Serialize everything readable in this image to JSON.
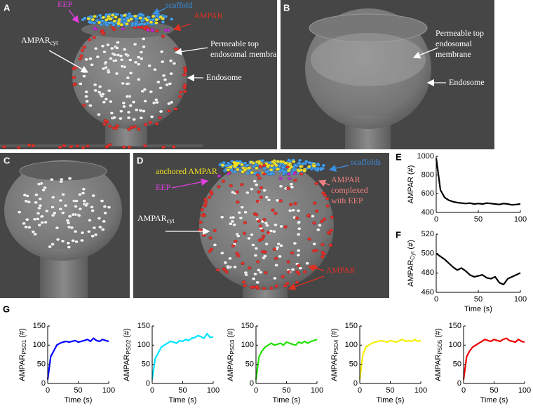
{
  "panels": {
    "A": {
      "label": "A",
      "eep": "EEP",
      "scaffold": "scaffold",
      "ampar": "AMPAR",
      "ampar_cyt": {
        "main": "AMPAR",
        "sub": "cyt"
      },
      "permeable": [
        "Permeable top",
        "endosomal membrane"
      ],
      "endosome": "Endosome"
    },
    "B": {
      "label": "B",
      "permeable": [
        "Permeable top",
        "endosomal",
        "membrane"
      ],
      "endosome": "Endosome"
    },
    "C": {
      "label": "C"
    },
    "D": {
      "label": "D",
      "anchored": "anchored AMPAR",
      "scaffolds": "scaffolds",
      "eep": "EEP",
      "complexed": [
        "AMPAR",
        "complexed",
        "with EEP"
      ],
      "ampar_cyt": {
        "main": "AMPAR",
        "sub": "cyt"
      },
      "ampar": "AMPAR"
    },
    "G": {
      "label": "G"
    }
  },
  "chart_data": [
    {
      "type": "line",
      "panel_label": "E",
      "ylabel": {
        "main": "AMPAR",
        "unit": "(#)"
      },
      "color": "#000000",
      "x": [
        0,
        5,
        10,
        15,
        20,
        25,
        30,
        35,
        40,
        45,
        50,
        55,
        60,
        65,
        70,
        75,
        80,
        85,
        90,
        95,
        100
      ],
      "values": [
        980,
        640,
        560,
        530,
        515,
        505,
        500,
        495,
        500,
        490,
        495,
        490,
        500,
        495,
        490,
        485,
        495,
        490,
        480,
        485,
        490
      ],
      "xlim": [
        0,
        100
      ],
      "xticks": [
        0,
        50,
        100
      ],
      "ylim": [
        400,
        1000
      ],
      "yticks": [
        400,
        600,
        800,
        1000
      ]
    },
    {
      "type": "line",
      "panel_label": "F",
      "ylabel": {
        "main": "AMPAR",
        "sub": "Cyt",
        "unit": "(#)"
      },
      "xlabel": "Time (s)",
      "color": "#000000",
      "x": [
        0,
        5,
        10,
        15,
        20,
        25,
        30,
        35,
        40,
        45,
        50,
        55,
        60,
        65,
        70,
        75,
        80,
        85,
        90,
        95,
        100
      ],
      "values": [
        500,
        497,
        494,
        490,
        486,
        483,
        485,
        482,
        478,
        476,
        477,
        478,
        475,
        474,
        476,
        470,
        468,
        474,
        476,
        478,
        480
      ],
      "xlim": [
        0,
        100
      ],
      "xticks": [
        0,
        50,
        100
      ],
      "ylim": [
        460,
        520
      ],
      "yticks": [
        460,
        480,
        500,
        520
      ]
    },
    {
      "type": "line",
      "ylabel": {
        "main": "AMPAR",
        "sub": "PSD1",
        "unit": "(#)"
      },
      "xlabel": "Time (s)",
      "color": "#0000ff",
      "x": [
        0,
        5,
        10,
        15,
        20,
        25,
        30,
        35,
        40,
        45,
        50,
        55,
        60,
        65,
        70,
        75,
        80,
        85,
        90,
        95,
        100
      ],
      "values": [
        10,
        70,
        85,
        100,
        105,
        108,
        110,
        108,
        110,
        112,
        108,
        110,
        112,
        115,
        110,
        118,
        112,
        110,
        115,
        112,
        110
      ],
      "xlim": [
        0,
        100
      ],
      "xticks": [
        0,
        50,
        100
      ],
      "ylim": [
        0,
        150
      ],
      "yticks": [
        0,
        50,
        100,
        150
      ]
    },
    {
      "type": "line",
      "ylabel": {
        "main": "AMPAR",
        "sub": "PSD2",
        "unit": "(#)"
      },
      "xlabel": "Time (s)",
      "color": "#00e5ff",
      "x": [
        0,
        5,
        10,
        15,
        20,
        25,
        30,
        35,
        40,
        45,
        50,
        55,
        60,
        65,
        70,
        75,
        80,
        85,
        90,
        95,
        100
      ],
      "values": [
        10,
        65,
        80,
        95,
        100,
        105,
        110,
        108,
        105,
        112,
        110,
        115,
        112,
        118,
        120,
        125,
        122,
        118,
        130,
        120,
        122
      ],
      "xlim": [
        0,
        100
      ],
      "xticks": [
        0,
        50,
        100
      ],
      "ylim": [
        0,
        150
      ],
      "yticks": [
        0,
        50,
        100,
        150
      ]
    },
    {
      "type": "line",
      "ylabel": {
        "main": "AMPAR",
        "sub": "PSD3",
        "unit": "(#)"
      },
      "xlabel": "Time (s)",
      "color": "#22e000",
      "x": [
        0,
        5,
        10,
        15,
        20,
        25,
        30,
        35,
        40,
        45,
        50,
        55,
        60,
        65,
        70,
        75,
        80,
        85,
        90,
        95,
        100
      ],
      "values": [
        10,
        70,
        85,
        95,
        100,
        105,
        100,
        102,
        105,
        100,
        108,
        105,
        102,
        100,
        108,
        105,
        110,
        105,
        110,
        112,
        115
      ],
      "xlim": [
        0,
        100
      ],
      "xticks": [
        0,
        50,
        100
      ],
      "ylim": [
        0,
        150
      ],
      "yticks": [
        0,
        50,
        100,
        150
      ]
    },
    {
      "type": "line",
      "ylabel": {
        "main": "AMPAR",
        "sub": "PSD4",
        "unit": "(#)"
      },
      "xlabel": "Time (s)",
      "color": "#f5f000",
      "x": [
        0,
        5,
        10,
        15,
        20,
        25,
        30,
        35,
        40,
        45,
        50,
        55,
        60,
        65,
        70,
        75,
        80,
        85,
        90,
        95,
        100
      ],
      "values": [
        10,
        75,
        95,
        100,
        105,
        108,
        110,
        112,
        110,
        108,
        112,
        110,
        108,
        112,
        115,
        110,
        112,
        110,
        115,
        110,
        112
      ],
      "xlim": [
        0,
        100
      ],
      "xticks": [
        0,
        50,
        100
      ],
      "ylim": [
        0,
        150
      ],
      "yticks": [
        0,
        50,
        100,
        150
      ]
    },
    {
      "type": "line",
      "ylabel": {
        "main": "AMPAR",
        "sub": "PSD5",
        "unit": "(#)"
      },
      "xlabel": "Time (s)",
      "color": "#ee0000",
      "x": [
        0,
        5,
        10,
        15,
        20,
        25,
        30,
        35,
        40,
        45,
        50,
        55,
        60,
        65,
        70,
        75,
        80,
        85,
        90,
        95,
        100
      ],
      "values": [
        10,
        70,
        85,
        95,
        100,
        105,
        110,
        115,
        112,
        110,
        115,
        112,
        110,
        115,
        118,
        112,
        110,
        108,
        115,
        110,
        108
      ],
      "xlim": [
        0,
        100
      ],
      "xticks": [
        0,
        50,
        100
      ],
      "ylim": [
        0,
        150
      ],
      "yticks": [
        0,
        50,
        100,
        150
      ]
    }
  ]
}
